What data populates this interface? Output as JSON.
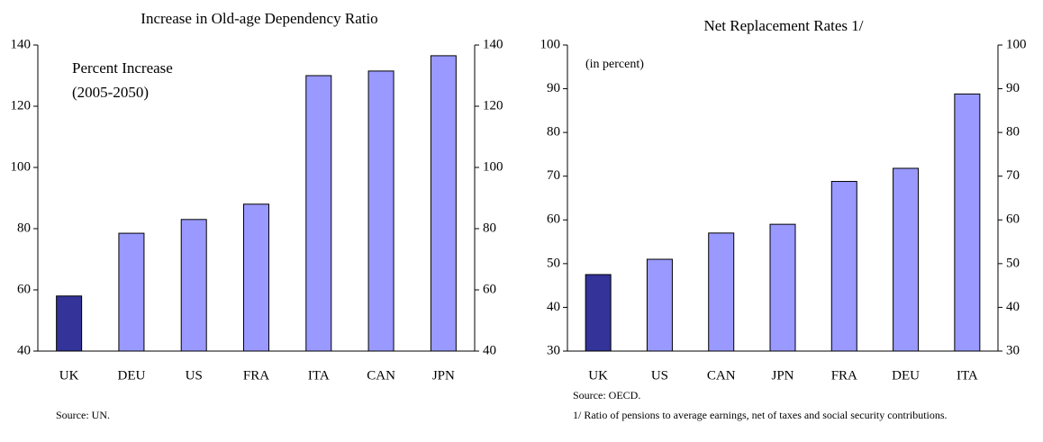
{
  "chart_data": [
    {
      "type": "bar",
      "title": "Increase in Old-age Dependency Ratio",
      "annotation": [
        "Percent Increase",
        "(2005-2050)"
      ],
      "categories": [
        "UK",
        "DEU",
        "US",
        "FRA",
        "ITA",
        "CAN",
        "JPN"
      ],
      "values": [
        58,
        78.5,
        83,
        88,
        130,
        131.5,
        136.5
      ],
      "colors": [
        "#333399",
        "#9999ff",
        "#9999ff",
        "#9999ff",
        "#9999ff",
        "#9999ff",
        "#9999ff"
      ],
      "ylim": [
        40,
        140
      ],
      "yticks": [
        40,
        60,
        80,
        100,
        120,
        140
      ],
      "y2lim": [
        40,
        140
      ],
      "y2ticks": [
        40,
        60,
        80,
        100,
        120,
        140
      ],
      "notes": [
        "Source: UN."
      ]
    },
    {
      "type": "bar",
      "title": "Net Replacement Rates 1/",
      "annotation": [
        "(in percent)"
      ],
      "categories": [
        "UK",
        "US",
        "CAN",
        "JPN",
        "FRA",
        "DEU",
        "ITA"
      ],
      "values": [
        47.5,
        51,
        57,
        59,
        68.8,
        71.8,
        88.8
      ],
      "colors": [
        "#333399",
        "#9999ff",
        "#9999ff",
        "#9999ff",
        "#9999ff",
        "#9999ff",
        "#9999ff"
      ],
      "ylim": [
        30,
        100
      ],
      "yticks": [
        30,
        40,
        50,
        60,
        70,
        80,
        90,
        100
      ],
      "y2lim": [
        30,
        100
      ],
      "y2ticks": [
        30,
        40,
        50,
        60,
        70,
        80,
        90,
        100
      ],
      "notes": [
        "Source: OECD.",
        "1/ Ratio of pensions to average earnings, net of taxes and social security contributions."
      ]
    }
  ]
}
